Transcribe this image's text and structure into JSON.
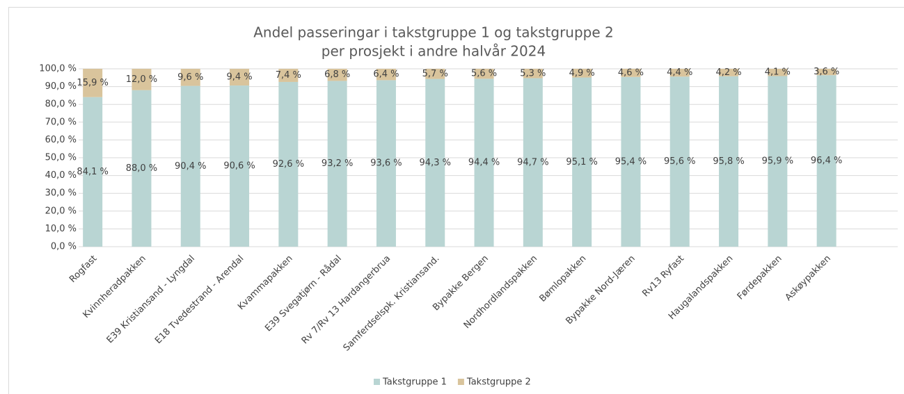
{
  "chart_data": {
    "type": "stacked_bar",
    "title": [
      "Andel passeringar i takstgruppe 1 og takstgruppe 2",
      "per prosjekt i andre halvår 2024"
    ],
    "categories": [
      "Rogfast",
      "Kvinnheradpakken",
      "E39 Kristiansand - Lyngdal",
      "E18 Tvedestrand - Arendal",
      "Kvammapakken",
      "E39 Svegatjørn - Rådal",
      "Rv 7/Rv 13 Hardangerbrua",
      "Samferdselspk. Kristiansand.",
      "Bypakke Bergen",
      "Nordhordlandspakken",
      "Bømlopakken",
      "Bypakke Nord-Jæren",
      "Rv13 Ryfast",
      "Haugalandspakken",
      "Førdepakken",
      "Askøypakken"
    ],
    "series": [
      {
        "name": "Takstgruppe 1",
        "color": "#b9d5d3",
        "values": [
          84.1,
          88.0,
          90.4,
          90.6,
          92.6,
          93.2,
          93.6,
          94.3,
          94.4,
          94.7,
          95.1,
          95.4,
          95.6,
          95.8,
          95.9,
          96.4
        ],
        "value_labels": [
          "84,1 %",
          "88,0 %",
          "90,4 %",
          "90,6 %",
          "92,6 %",
          "93,2 %",
          "93,6 %",
          "94,3 %",
          "94,4 %",
          "94,7 %",
          "95,1 %",
          "95,4 %",
          "95,6 %",
          "95,8 %",
          "95,9 %",
          "96,4 %"
        ]
      },
      {
        "name": "Takstgruppe 2",
        "color": "#d9c49c",
        "values": [
          15.9,
          12.0,
          9.6,
          9.4,
          7.4,
          6.8,
          6.4,
          5.7,
          5.6,
          5.3,
          4.9,
          4.6,
          4.4,
          4.2,
          4.1,
          3.6
        ],
        "value_labels": [
          "15,9 %",
          "12,0 %",
          "9,6 %",
          "9,4 %",
          "7,4 %",
          "6,8 %",
          "6,4 %",
          "5,7 %",
          "5,6 %",
          "5,3 %",
          "4,9 %",
          "4,6 %",
          "4,4 %",
          "4,2 %",
          "4,1 %",
          "3,6 %"
        ]
      }
    ],
    "ylim": [
      0,
      100
    ],
    "yticks": [
      {
        "value": 0,
        "label": "0,0 %"
      },
      {
        "value": 10,
        "label": "10,0 %"
      },
      {
        "value": 20,
        "label": "20,0 %"
      },
      {
        "value": 30,
        "label": "30,0 %"
      },
      {
        "value": 40,
        "label": "40,0 %"
      },
      {
        "value": 50,
        "label": "50,0 %"
      },
      {
        "value": 60,
        "label": "60,0 %"
      },
      {
        "value": 70,
        "label": "70,0 %"
      },
      {
        "value": 80,
        "label": "80,0 %"
      },
      {
        "value": 90,
        "label": "90,0 %"
      },
      {
        "value": 100,
        "label": "100,0 %"
      }
    ],
    "grid": true,
    "legend": "bottom"
  }
}
